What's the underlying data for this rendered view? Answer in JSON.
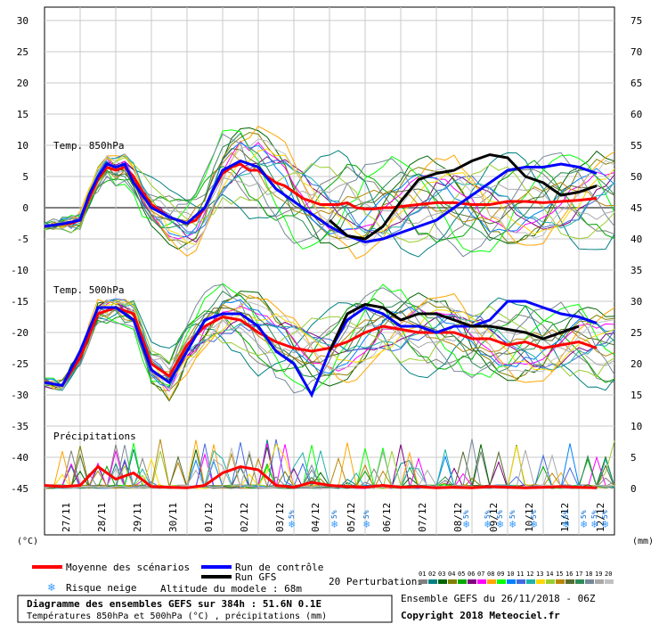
{
  "chart_data": {
    "type": "line",
    "title": "Diagramme des ensembles GEFS sur 384h : 51.6N 0.1E",
    "subtitle": "Températures 850hPa et 500hPa (°C) , précipitations (mm)",
    "left_axis": {
      "unit": "(°C)",
      "ticks": [
        30,
        25,
        20,
        15,
        10,
        5,
        0,
        -5,
        -10,
        -15,
        -20,
        -25,
        -30,
        -35,
        -40,
        -45
      ]
    },
    "right_axis": {
      "unit": "(mm)",
      "ticks": [
        75,
        70,
        65,
        60,
        55,
        50,
        45,
        40,
        35,
        30,
        25,
        20,
        15,
        10,
        5,
        0
      ]
    },
    "x_ticks": [
      "27/11",
      "28/11",
      "29/11",
      "30/11",
      "01/12",
      "02/12",
      "03/12",
      "04/12",
      "05/12",
      "06/12",
      "07/12",
      "08/12",
      "09/12",
      "10/12",
      "11/12",
      "12/12"
    ],
    "panel_labels": [
      "Temp. 850hPa",
      "Temp. 500hPa",
      "Précipitations"
    ],
    "grid": true,
    "series": [
      {
        "name": "Moyenne des scénarios",
        "color": "#ff0000",
        "panel": "850hPa",
        "x": [
          0,
          0.25,
          0.5,
          0.75,
          1,
          1.25,
          1.5,
          1.75,
          2,
          2.25,
          2.5,
          2.75,
          3,
          3.25,
          3.5,
          3.75,
          4,
          4.25,
          4.5,
          4.75,
          5,
          5.25,
          5.5,
          5.75,
          6,
          6.25,
          6.5,
          6.75,
          7,
          7.25,
          7.5,
          7.75,
          8,
          8.25,
          8.5,
          8.75,
          9,
          9.25,
          9.5,
          9.75,
          10,
          10.5,
          11,
          11.5,
          12,
          12.5,
          13,
          13.5,
          14,
          14.5,
          15,
          15.5
        ],
        "y": [
          -3,
          -2.8,
          -2.6,
          -2.5,
          -2,
          1.5,
          4.5,
          6.5,
          6,
          6.5,
          5,
          2.5,
          0.5,
          -0.5,
          -1.5,
          -2,
          -2.5,
          -2,
          0,
          3,
          5.5,
          6.5,
          7,
          6,
          6,
          5,
          4,
          3.5,
          2.5,
          1.5,
          1,
          0.5,
          0.5,
          0.5,
          0.8,
          0,
          -0.2,
          -0.2,
          0,
          0,
          0.2,
          0.5,
          0.8,
          0.8,
          0.5,
          0.5,
          1,
          1,
          0.8,
          1,
          1.2,
          1.5
        ]
      },
      {
        "name": "Run de contrôle",
        "color": "#0000ff",
        "panel": "850hPa",
        "x": [
          0,
          0.5,
          1,
          1.25,
          1.5,
          1.75,
          2,
          2.25,
          2.5,
          2.75,
          3,
          3.5,
          4,
          4.5,
          5,
          5.5,
          6,
          6.5,
          7,
          7.5,
          8,
          8.5,
          9,
          9.5,
          10,
          10.5,
          11,
          11.5,
          12,
          12.5,
          13,
          13.5,
          14,
          14.5,
          15,
          15.5
        ],
        "y": [
          -3,
          -2.6,
          -2,
          2,
          5,
          7,
          6.5,
          7,
          4,
          2,
          0,
          -1.5,
          -2.5,
          0,
          6,
          7.5,
          6.5,
          3,
          1,
          -1,
          -3,
          -4.5,
          -5.5,
          -5,
          -4,
          -3,
          -2,
          0,
          2,
          4,
          6,
          6.5,
          6.5,
          7,
          6.5,
          5.5
        ]
      },
      {
        "name": "Run GFS",
        "color": "#000000",
        "panel": "850hPa",
        "x": [
          8,
          8.5,
          9,
          9.5,
          10,
          10.5,
          11,
          11.5,
          12,
          12.5,
          13,
          13.5,
          14,
          14.5,
          15,
          15.5
        ],
        "y": [
          -2,
          -4.5,
          -5,
          -3,
          1,
          4.5,
          5.5,
          6,
          7.5,
          8.5,
          8,
          5,
          4,
          2,
          2.5,
          3.5
        ]
      },
      {
        "name": "Moyenne des scénarios",
        "color": "#ff0000",
        "panel": "500hPa",
        "x": [
          0,
          0.5,
          1,
          1.5,
          2,
          2.5,
          3,
          3.5,
          4,
          4.5,
          5,
          5.5,
          6,
          6.5,
          7,
          7.5,
          8,
          8.5,
          9,
          9.5,
          10,
          10.5,
          11,
          11.5,
          12,
          12.5,
          13,
          13.5,
          14,
          14.5,
          15,
          15.5
        ],
        "y": [
          -28,
          -28.5,
          -24,
          -17,
          -16,
          -17,
          -25,
          -27,
          -22,
          -19,
          -17.5,
          -18,
          -20,
          -21.5,
          -22.5,
          -23,
          -22.5,
          -21.5,
          -20,
          -19,
          -19.5,
          -20,
          -20,
          -20,
          -21,
          -21,
          -22,
          -21.5,
          -22.5,
          -22,
          -21.5,
          -22.5
        ]
      },
      {
        "name": "Run de contrôle",
        "color": "#0000ff",
        "panel": "500hPa",
        "x": [
          0,
          0.5,
          1,
          1.5,
          2,
          2.5,
          3,
          3.5,
          4,
          4.5,
          5,
          5.5,
          6,
          6.5,
          7,
          7.5,
          8,
          8.5,
          9,
          9.5,
          10,
          10.5,
          11,
          11.5,
          12,
          12.5,
          13,
          13.5,
          14,
          14.5,
          15,
          15.5
        ],
        "y": [
          -28,
          -28.5,
          -23,
          -16,
          -16,
          -18,
          -26,
          -28,
          -23,
          -18,
          -17,
          -17,
          -19,
          -23,
          -25,
          -30,
          -23,
          -18,
          -16,
          -17,
          -19,
          -19,
          -20,
          -19,
          -19,
          -18,
          -15,
          -15,
          -16,
          -17,
          -17.5,
          -18.5
        ]
      },
      {
        "name": "Run GFS",
        "color": "#000000",
        "panel": "500hPa",
        "x": [
          8,
          8.5,
          9,
          9.5,
          10,
          10.5,
          11,
          11.5,
          12,
          12.5,
          13,
          13.5,
          14,
          14.5,
          15
        ],
        "y": [
          -23,
          -17,
          -15.5,
          -16,
          -18,
          -17,
          -17,
          -18,
          -19,
          -19,
          -19.5,
          -20,
          -21,
          -20,
          -19
        ]
      },
      {
        "name": "Moyenne des scénarios",
        "color": "#ff0000",
        "panel": "precip",
        "x": [
          0,
          0.5,
          1,
          1.5,
          2,
          2.5,
          3,
          3.5,
          4,
          4.5,
          5,
          5.5,
          6,
          6.5,
          7,
          7.5,
          8,
          8.5,
          9,
          9.5,
          10,
          10.5,
          11,
          11.5,
          12,
          12.5,
          13,
          13.5,
          14,
          14.5,
          15,
          15.5
        ],
        "y": [
          0.5,
          0.3,
          0.5,
          3.5,
          1.5,
          2.5,
          0.3,
          0.2,
          0.1,
          0.5,
          2.5,
          3.5,
          3,
          0.5,
          0.2,
          1,
          0.5,
          0.3,
          0.2,
          0.5,
          0.2,
          0.3,
          0.1,
          0.2,
          0.1,
          0.3,
          0.2,
          0.1,
          0.2,
          0.3,
          0.2,
          0.1
        ]
      }
    ],
    "snow_risk": [
      {
        "day": 7.2,
        "label": "5%"
      },
      {
        "day": 8.4,
        "label": "5%"
      },
      {
        "day": 9.3,
        "label": "5%"
      },
      {
        "day": 12.1,
        "label": "5%"
      },
      {
        "day": 12.7,
        "label": "5%"
      },
      {
        "day": 13.05,
        "label": "5%"
      },
      {
        "day": 13.4,
        "label": "5%"
      },
      {
        "day": 14.0,
        "label": "5%"
      },
      {
        "day": 14.9,
        "label": "5%"
      },
      {
        "day": 15.4,
        "label": "5%"
      },
      {
        "day": 15.7,
        "label": "5%"
      },
      {
        "day": 16.0,
        "label": "5%"
      }
    ]
  },
  "legend": {
    "mean": "Moyenne des scénarios",
    "control": "Run de contrôle",
    "gfs": "Run GFS",
    "snow": "Risque neige",
    "altitude": "Altitude du modele : 68m",
    "perturbations": "20 Perturbations",
    "pert_numbers": [
      "01",
      "02",
      "03",
      "04",
      "05",
      "06",
      "07",
      "08",
      "09",
      "10",
      "11",
      "12",
      "13",
      "14",
      "15",
      "16",
      "17",
      "18",
      "19",
      "20"
    ],
    "pert_colors": [
      "#808080",
      "#008080",
      "#006400",
      "#808000",
      "#00aa00",
      "#800080",
      "#ff00ff",
      "#ffa500",
      "#00ff00",
      "#0080ff",
      "#4169e1",
      "#20b2aa",
      "#ffd700",
      "#9acd32",
      "#b8860b",
      "#556b2f",
      "#2e8b57",
      "#778899",
      "#a9a9a9",
      "#c0c0c0"
    ]
  },
  "footer": {
    "title": "Diagramme des ensembles GEFS sur 384h : 51.6N 0.1E",
    "subtitle": "Températures 850hPa et 500hPa (°C) , précipitations (mm)",
    "run": "Ensemble GEFS du 26/11/2018 - 06Z",
    "copyright": "Copyright 2018 Meteociel.fr"
  }
}
